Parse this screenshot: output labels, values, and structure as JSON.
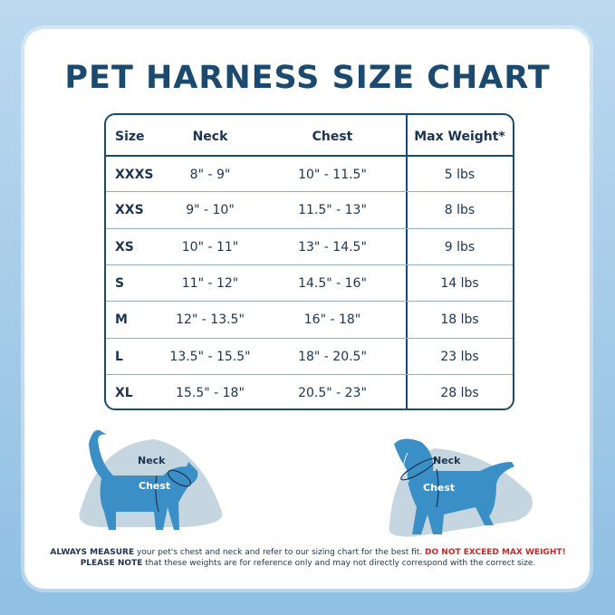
{
  "title": "PET HARNESS SIZE CHART",
  "table": {
    "headers": [
      "Size",
      "Neck",
      "Chest",
      "Max Weight*"
    ],
    "rows": [
      [
        "XXXS",
        "8\" - 9\"",
        "10\" - 11.5\"",
        "5 lbs"
      ],
      [
        "XXS",
        "9\" - 10\"",
        "11.5\" - 13\"",
        "8 lbs"
      ],
      [
        "XS",
        "10\" - 11\"",
        "13\" - 14.5\"",
        "9 lbs"
      ],
      [
        "S",
        "11\" - 12\"",
        "14.5\" - 16\"",
        "14 lbs"
      ],
      [
        "M",
        "12\" - 13.5\"",
        "16\" - 18\"",
        "18 lbs"
      ],
      [
        "L",
        "13.5\" - 15.5\"",
        "18\" - 20.5\"",
        "23 lbs"
      ],
      [
        "XL",
        "15.5\" - 18\"",
        "20.5\" - 23\"",
        "28 lbs"
      ]
    ]
  },
  "diagrams": {
    "cat": {
      "neck": "Neck",
      "chest": "Chest"
    },
    "dog": {
      "neck": "Neck",
      "chest": "Chest"
    }
  },
  "note": {
    "l1_bold": "ALWAYS MEASURE",
    "l1": " your pet's chest and neck and refer  to our sizing chart for the best fit. ",
    "l1_red": "DO NOT EXCEED MAX WEIGHT!",
    "l2_bold": "PLEASE NOTE",
    "l2": " that these weights are for reference only and may not directly correspond with the correct size."
  },
  "colors": {
    "navy": "#1b4a6e",
    "pet": "#3b8fc7",
    "blob": "#c5d6e0",
    "warning": "#c62828"
  }
}
